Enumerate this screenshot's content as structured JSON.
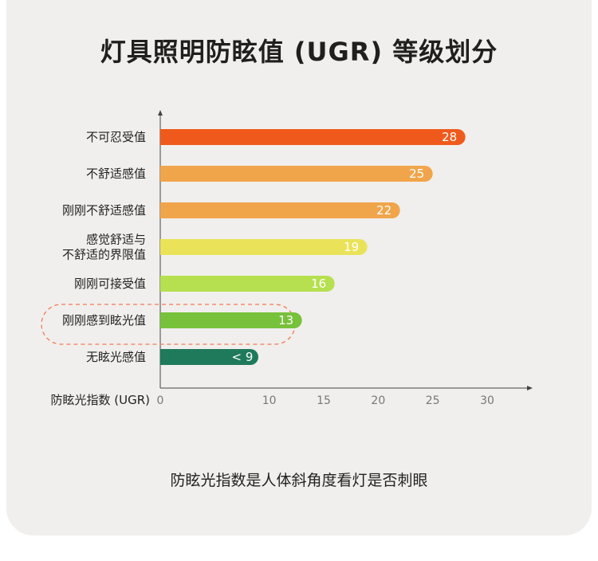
{
  "title": "灯具照明防眩值 (UGR) 等级划分",
  "caption": "防眩光指数是人体斜角度看灯是否刺眼",
  "chart_data": {
    "type": "bar",
    "orientation": "horizontal",
    "title": "灯具照明防眩值 (UGR) 等级划分",
    "xlabel": "防眩光指数 (UGR)",
    "ylabel": "",
    "xlim": [
      0,
      30
    ],
    "xticks": [
      "0",
      "10",
      "15",
      "20",
      "25",
      "30"
    ],
    "grid": false,
    "categories": [
      [
        "不可忍受值"
      ],
      [
        "不舒适感值"
      ],
      [
        "刚刚不舒适感值"
      ],
      [
        "感觉舒适与",
        "不舒适的界限值"
      ],
      [
        "刚刚可接受值"
      ],
      [
        "刚刚感到眩光值"
      ],
      [
        "无眩光感值"
      ]
    ],
    "values": [
      28,
      25,
      22,
      19,
      16,
      13,
      9
    ],
    "value_labels": [
      "28",
      "25",
      "22",
      "19",
      "16",
      "13",
      "< 9"
    ],
    "colors": [
      "#ef5a1c",
      "#f1a54b",
      "#f1a54b",
      "#eae35a",
      "#b6e04f",
      "#77c13b",
      "#1f7a5c"
    ],
    "highlight_index": 5,
    "highlight_color": "#ef7a55"
  }
}
